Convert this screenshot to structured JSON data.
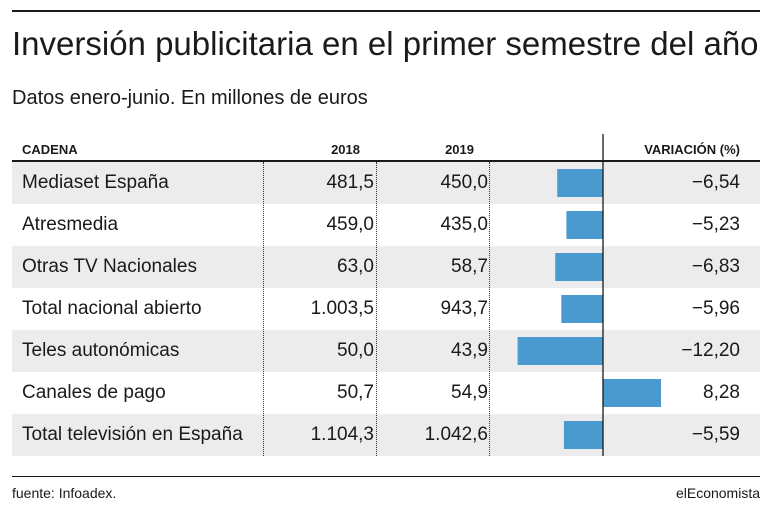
{
  "chart_data": {
    "type": "table",
    "title": "Inversión publicitaria en el primer semestre del año",
    "subtitle": "Datos enero-junio. En millones de euros",
    "columns": [
      "CADENA",
      "2018",
      "2019",
      "VARIACIÓN (%)"
    ],
    "rows": [
      {
        "name": "Mediaset España",
        "v2018": "481,5",
        "v2019": "450,0",
        "variation_label": "−6,54",
        "variation": -6.54
      },
      {
        "name": "Atresmedia",
        "v2018": "459,0",
        "v2019": "435,0",
        "variation_label": "−5,23",
        "variation": -5.23
      },
      {
        "name": "Otras TV Nacionales",
        "v2018": "63,0",
        "v2019": "58,7",
        "variation_label": "−6,83",
        "variation": -6.83
      },
      {
        "name": "Total nacional abierto",
        "v2018": "1.003,5",
        "v2019": "943,7",
        "variation_label": "−5,96",
        "variation": -5.96
      },
      {
        "name": "Teles autonómicas",
        "v2018": "50,0",
        "v2019": "43,9",
        "variation_label": "−12,20",
        "variation": -12.2
      },
      {
        "name": "Canales de pago",
        "v2018": "50,7",
        "v2019": "54,9",
        "variation_label": "8,28",
        "variation": 8.28
      },
      {
        "name": "Total televisión en España",
        "v2018": "1.104,3",
        "v2019": "1.042,6",
        "variation_label": "−5,59",
        "variation": -5.59
      }
    ],
    "bar_color": "#4a9ad0",
    "row_shade_color": "#ececec"
  },
  "footer": {
    "source": "fuente: Infoadex.",
    "brand": "elEconomista"
  }
}
